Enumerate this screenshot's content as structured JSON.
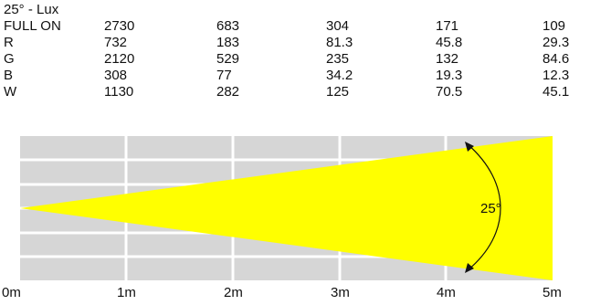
{
  "title": "25° - Lux",
  "rows": [
    {
      "label": "FULL ON",
      "values": [
        "2730",
        "683",
        "304",
        "171",
        "109"
      ]
    },
    {
      "label": "R",
      "values": [
        "732",
        "183",
        "81.3",
        "45.8",
        "29.3"
      ]
    },
    {
      "label": "G",
      "values": [
        "2120",
        "529",
        "235",
        "132",
        "84.6"
      ]
    },
    {
      "label": "B",
      "values": [
        "308",
        "77",
        "34.2",
        "19.3",
        "12.3"
      ]
    },
    {
      "label": "W",
      "values": [
        "1130",
        "282",
        "125",
        "70.5",
        "45.1"
      ]
    }
  ],
  "distances": [
    "0m",
    "1m",
    "2m",
    "3m",
    "4m",
    "5m"
  ],
  "beam_angle": "25°",
  "colors": {
    "beam": "#ffff00",
    "grid": "#d6d6d6",
    "divider": "#ffffff",
    "arrow": "#111111"
  }
}
